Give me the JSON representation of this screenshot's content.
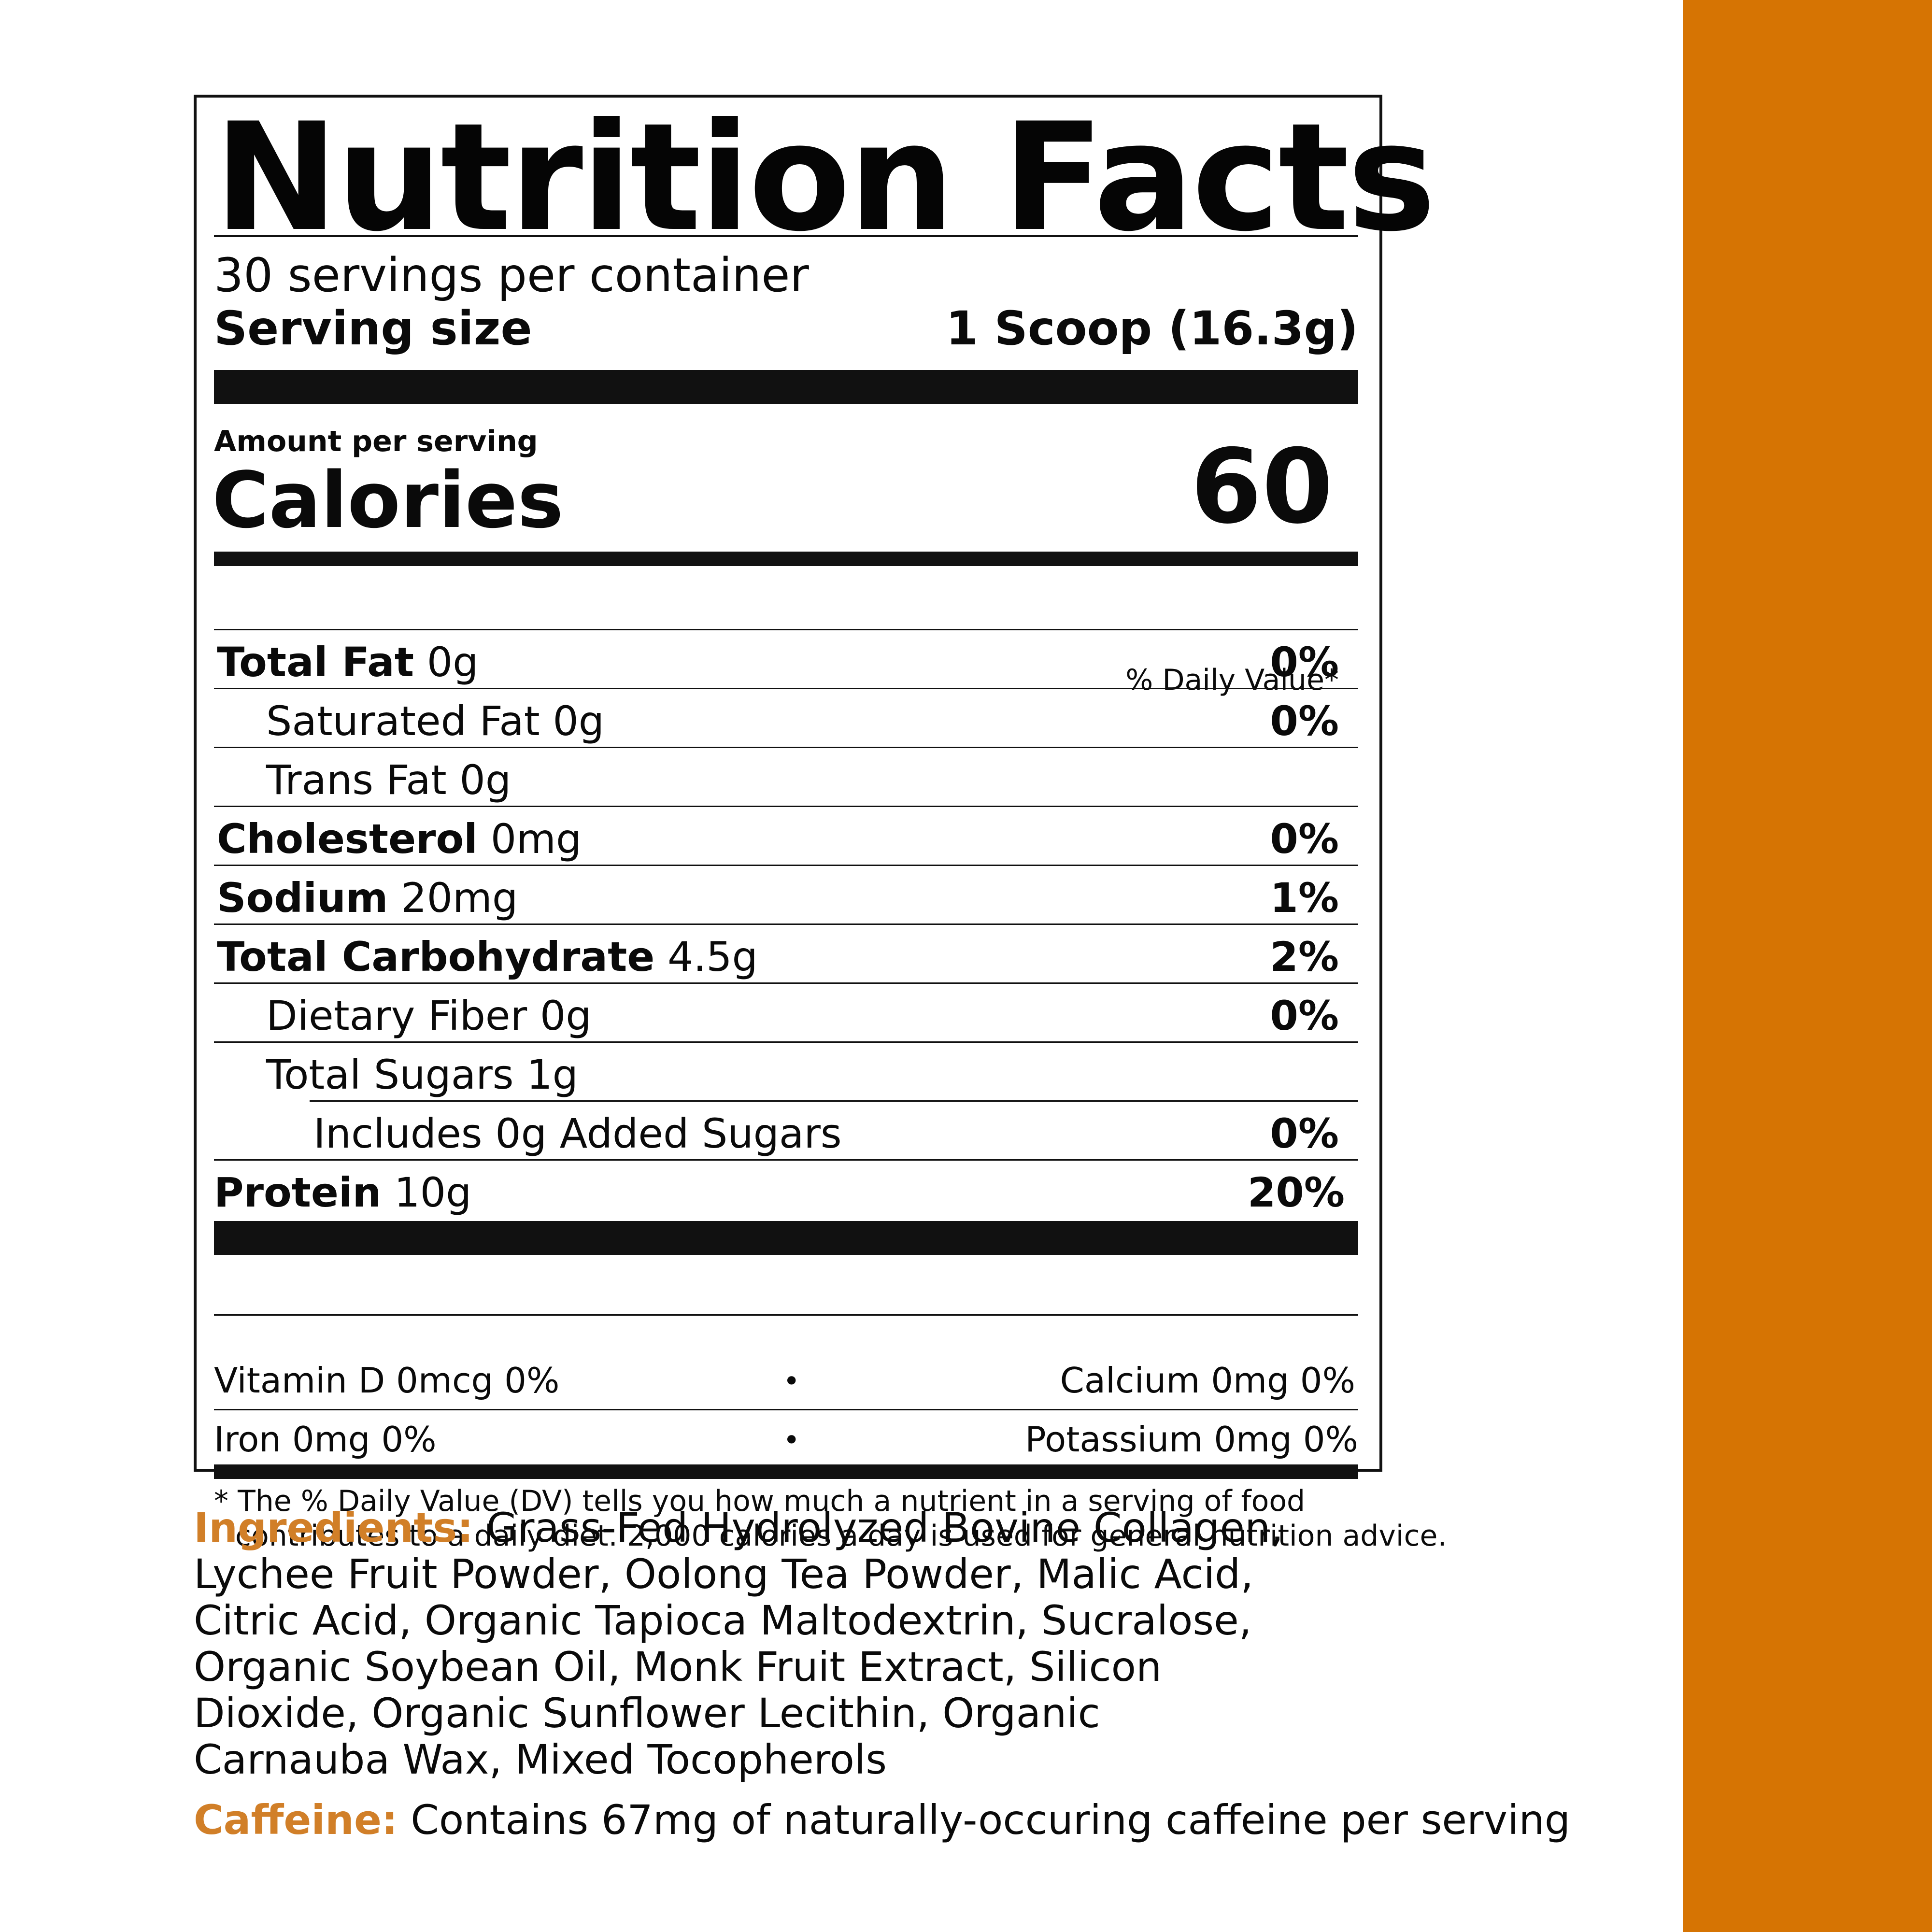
{
  "colors": {
    "accent": "#d67403",
    "heading_accent": "#d17f28",
    "text": "#0a0a0a"
  },
  "label": {
    "title": "Nutrition Facts",
    "servings_per_container": "30 servings per container",
    "serving_size_label": "Serving size",
    "serving_size_value": "1 Scoop (16.3g)",
    "amount_per_serving": "Amount per serving",
    "calories_label": "Calories",
    "calories_value": "60",
    "dv_header": "% Daily Value*",
    "nutrients": [
      {
        "name": "Total Fat",
        "amount": "0g",
        "dv": "0%"
      },
      {
        "name": "Saturated Fat",
        "amount": "0g",
        "dv": "0%"
      },
      {
        "name": "Trans Fat",
        "amount": "0g",
        "dv": ""
      },
      {
        "name": "Cholesterol",
        "amount": "0mg",
        "dv": "0%"
      },
      {
        "name": "Sodium",
        "amount": "20mg",
        "dv": "1%"
      },
      {
        "name": "Total Carbohydrate",
        "amount": "4.5g",
        "dv": "2%"
      },
      {
        "name": "Dietary Fiber",
        "amount": "0g",
        "dv": "0%"
      },
      {
        "name": "Total Sugars",
        "amount": "1g",
        "dv": ""
      },
      {
        "name": "Includes 0g Added Sugars",
        "amount": "",
        "dv": "0%"
      },
      {
        "name": "Protein",
        "amount": "10g",
        "dv": "20%"
      }
    ],
    "vitamins": {
      "vitamin_d": "Vitamin D 0mcg 0%",
      "calcium": "Calcium 0mg 0%",
      "iron": "Iron 0mg 0%",
      "potassium": "Potassium 0mg 0%",
      "bullet": "•"
    },
    "footnote_line1": "* The % Daily Value (DV) tells you how much a nutrient in a serving of food",
    "footnote_line2": "contributes to a daily diet. 2,000 calories a day is used for general nutrition advice."
  },
  "ingredients": {
    "heading": "Ingredients:",
    "text": "Grass-Fed Hydrolyzed Bovine Collagen, Lychee Fruit Powder, Oolong Tea Powder, Malic Acid, Citric Acid, Organic Tapioca Maltodextrin, Sucralose, Organic Soybean Oil, Monk Fruit Extract, Silicon Dioxide, Organic Sunflower Lecithin, Organic Carnauba Wax, Mixed Tocopherols"
  },
  "caffeine": {
    "heading": "Caffeine:",
    "text": "Contains 67mg of naturally-occuring caffeine per serving"
  }
}
